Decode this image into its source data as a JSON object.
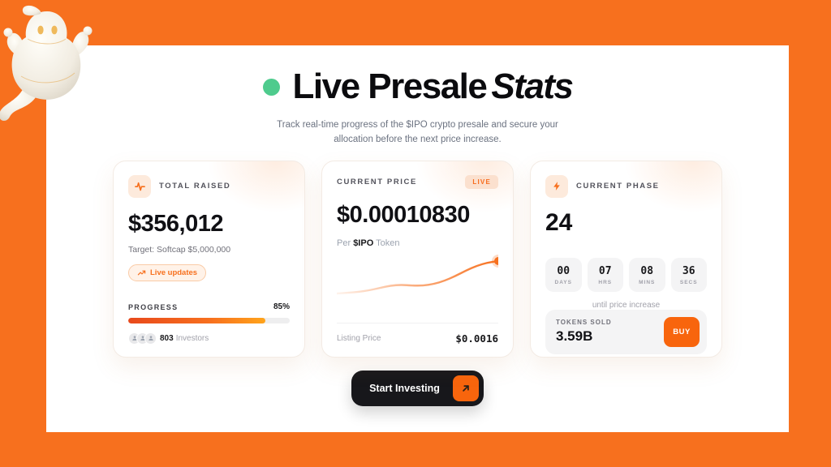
{
  "colors": {
    "accent": "#F7701E",
    "accent_deep": "#F8650D",
    "green_dot": "#4ECB8D",
    "dark": "#17171B"
  },
  "header": {
    "title_main": "Live Presale",
    "title_italic": "Stats",
    "subtitle_line1": "Track real-time progress of the $IPO crypto presale and secure your",
    "subtitle_line2": "allocation before the next price increase."
  },
  "cards": {
    "total_raised": {
      "label": "TOTAL RAISED",
      "icon": "pulse-icon",
      "amount": "$356,012",
      "target": "Target: Softcap $5,000,000",
      "live_updates_label": "Live updates",
      "progress_label": "PROGRESS",
      "progress_pct": "85%",
      "progress_value": 85,
      "investors_count": "803",
      "investors_label": "Investors"
    },
    "current_price": {
      "label": "CURRENT PRICE",
      "live_badge": "LIVE",
      "price": "$0.00010830",
      "per_prefix": "Per ",
      "token": "$IPO",
      "per_suffix": " Token",
      "sparkline": {
        "type": "line",
        "values": [
          2,
          3,
          4,
          6,
          9,
          12,
          13,
          12,
          12,
          14,
          18,
          24,
          31,
          37,
          41,
          43
        ]
      },
      "listing_label": "Listing Price",
      "listing_price": "$0.0016"
    },
    "current_phase": {
      "label": "CURRENT PHASE",
      "icon": "bolt-icon",
      "phase": "24",
      "countdown": [
        {
          "value": "00",
          "unit": "DAYS"
        },
        {
          "value": "07",
          "unit": "HRS"
        },
        {
          "value": "08",
          "unit": "MINS"
        },
        {
          "value": "36",
          "unit": "SECS"
        }
      ],
      "until_text": "until price increase",
      "tokens_sold_label": "TOKENS SOLD",
      "tokens_sold_value": "3.59B",
      "buy_label": "BUY"
    }
  },
  "cta": {
    "label": "Start Investing",
    "icon": "arrow-up-right-icon"
  }
}
